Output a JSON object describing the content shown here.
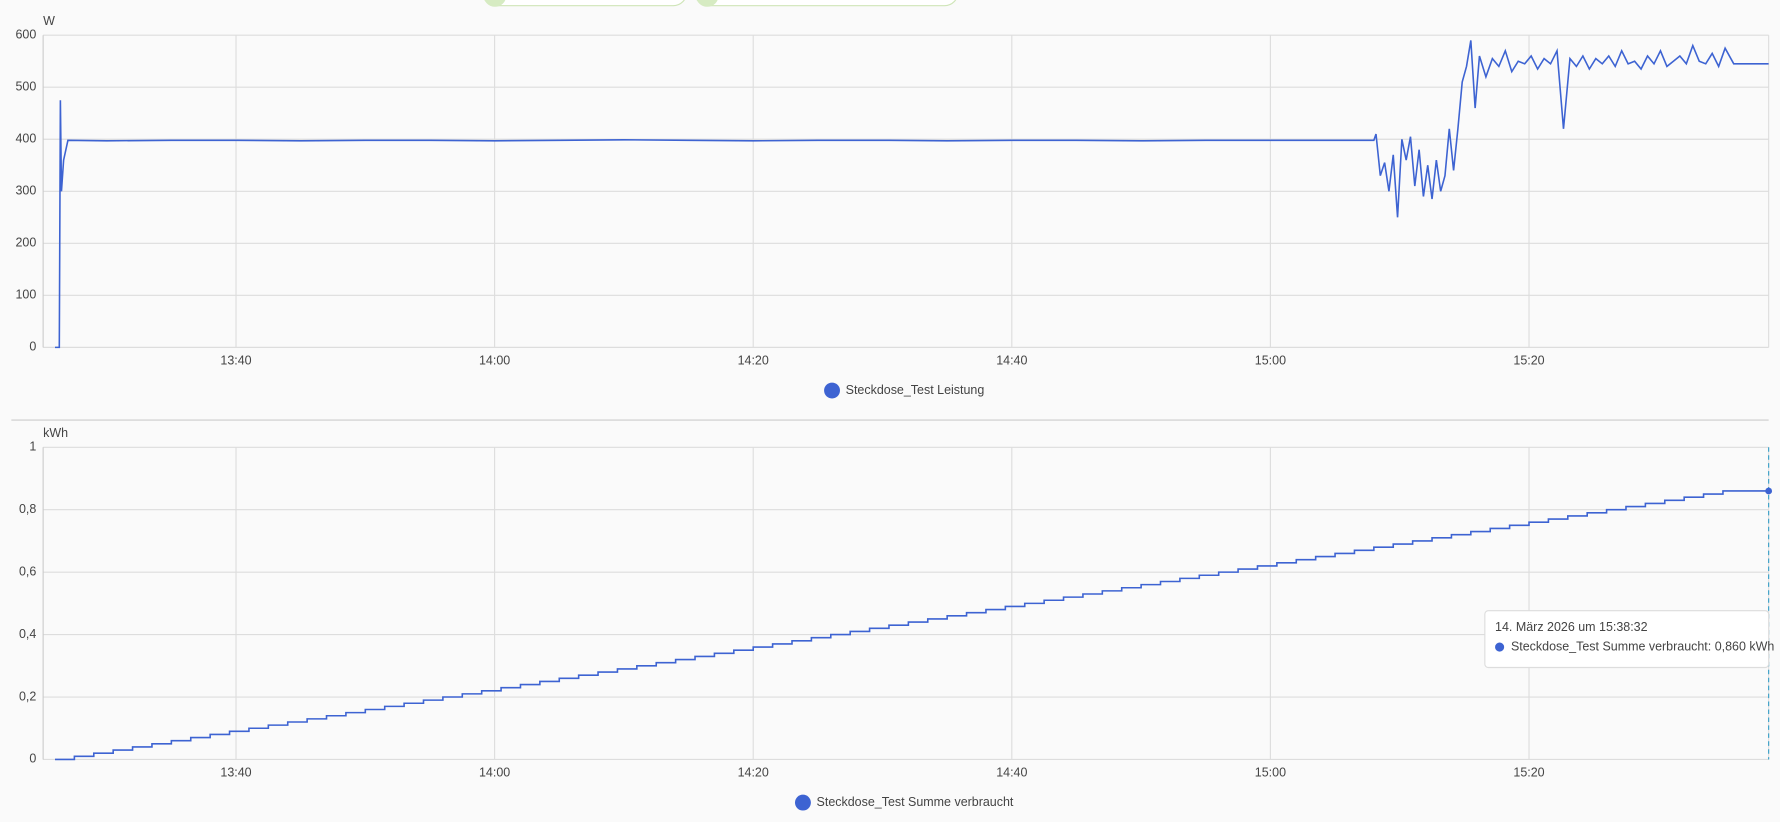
{
  "chart_data": [
    {
      "type": "line",
      "y_label": "W",
      "xlim": [
        "13:25:05",
        "15:38:32"
      ],
      "xticks": [
        "13:40",
        "14:00",
        "14:20",
        "14:40",
        "15:00",
        "15:20"
      ],
      "ylim": [
        0,
        600
      ],
      "yticks": [
        0,
        100,
        200,
        300,
        400,
        500,
        600
      ],
      "grid": true,
      "x": [
        "13:26:00",
        "13:26:20",
        "13:26:25",
        "13:26:30",
        "13:26:40",
        "13:27:00",
        "13:30:00",
        "13:35:00",
        "13:40:00",
        "13:45:00",
        "13:50:00",
        "13:55:00",
        "14:00:00",
        "14:05:00",
        "14:10:00",
        "14:15:00",
        "14:20:00",
        "14:25:00",
        "14:30:00",
        "14:35:00",
        "14:40:00",
        "14:45:00",
        "14:50:00",
        "14:55:00",
        "15:00:00",
        "15:05:00",
        "15:08:00",
        "15:08:10",
        "15:08:30",
        "15:08:50",
        "15:09:10",
        "15:09:30",
        "15:09:50",
        "15:10:10",
        "15:10:30",
        "15:10:50",
        "15:11:10",
        "15:11:30",
        "15:11:50",
        "15:12:10",
        "15:12:30",
        "15:12:50",
        "15:13:10",
        "15:13:30",
        "15:13:50",
        "15:14:10",
        "15:14:30",
        "15:14:50",
        "15:15:10",
        "15:15:30",
        "15:15:50",
        "15:16:10",
        "15:16:40",
        "15:17:10",
        "15:17:40",
        "15:18:10",
        "15:18:40",
        "15:19:10",
        "15:19:40",
        "15:20:10",
        "15:20:40",
        "15:21:10",
        "15:21:40",
        "15:22:10",
        "15:22:40",
        "15:23:10",
        "15:23:40",
        "15:24:10",
        "15:24:40",
        "15:25:10",
        "15:25:40",
        "15:26:10",
        "15:26:40",
        "15:27:10",
        "15:27:40",
        "15:28:10",
        "15:28:40",
        "15:29:10",
        "15:29:40",
        "15:30:10",
        "15:30:40",
        "15:31:10",
        "15:31:40",
        "15:32:10",
        "15:32:40",
        "15:33:10",
        "15:33:40",
        "15:34:10",
        "15:34:40",
        "15:35:10",
        "15:35:50",
        "15:38:32"
      ],
      "series": [
        {
          "name": "Steckdose_Test Leistung",
          "color": "#3d63d2",
          "values": [
            0,
            0,
            475,
            300,
            360,
            398,
            397,
            398,
            398,
            397,
            398,
            398,
            397,
            398,
            399,
            398,
            397,
            398,
            398,
            397,
            398,
            398,
            397,
            398,
            398,
            398,
            398,
            410,
            330,
            355,
            300,
            370,
            250,
            400,
            360,
            405,
            310,
            380,
            290,
            350,
            285,
            360,
            300,
            330,
            420,
            340,
            420,
            510,
            540,
            590,
            460,
            560,
            520,
            555,
            540,
            570,
            530,
            550,
            545,
            560,
            535,
            555,
            545,
            570,
            420,
            555,
            540,
            560,
            535,
            555,
            545,
            560,
            540,
            570,
            545,
            550,
            535,
            560,
            545,
            570,
            540,
            550,
            560,
            545,
            580,
            550,
            545,
            565,
            540,
            575,
            545,
            545
          ]
        }
      ]
    },
    {
      "type": "step",
      "y_label": "kWh",
      "xlim": [
        "13:25:05",
        "15:38:32"
      ],
      "xticks": [
        "13:40",
        "14:00",
        "14:20",
        "14:40",
        "15:00",
        "15:20"
      ],
      "ylim": [
        0,
        1
      ],
      "yticks": [
        0,
        {
          "value": 0.2,
          "label": "0,2"
        },
        {
          "value": 0.4,
          "label": "0,4"
        },
        {
          "value": 0.6,
          "label": "0,6"
        },
        {
          "value": 0.8,
          "label": "0,8"
        },
        1
      ],
      "grid": true,
      "x": [
        "13:26:00",
        "13:27:30",
        "13:29:00",
        "13:30:30",
        "13:32:00",
        "13:33:30",
        "13:35:00",
        "13:36:30",
        "13:38:00",
        "13:39:30",
        "13:41:00",
        "13:42:30",
        "13:44:00",
        "13:45:30",
        "13:47:00",
        "13:48:30",
        "13:50:00",
        "13:51:30",
        "13:53:00",
        "13:54:30",
        "13:56:00",
        "13:57:30",
        "13:59:00",
        "14:00:30",
        "14:02:00",
        "14:03:30",
        "14:05:00",
        "14:06:30",
        "14:08:00",
        "14:09:30",
        "14:11:00",
        "14:12:30",
        "14:14:00",
        "14:15:30",
        "14:17:00",
        "14:18:30",
        "14:20:00",
        "14:21:30",
        "14:23:00",
        "14:24:30",
        "14:26:00",
        "14:27:30",
        "14:29:00",
        "14:30:30",
        "14:32:00",
        "14:33:30",
        "14:35:00",
        "14:36:30",
        "14:38:00",
        "14:39:30",
        "14:41:00",
        "14:42:30",
        "14:44:00",
        "14:45:30",
        "14:47:00",
        "14:48:30",
        "14:50:00",
        "14:51:30",
        "14:53:00",
        "14:54:30",
        "14:56:00",
        "14:57:30",
        "14:59:00",
        "15:00:30",
        "15:02:00",
        "15:03:30",
        "15:05:00",
        "15:06:30",
        "15:08:00",
        "15:09:30",
        "15:11:00",
        "15:12:30",
        "15:14:00",
        "15:15:30",
        "15:17:00",
        "15:18:30",
        "15:20:00",
        "15:21:30",
        "15:23:00",
        "15:24:30",
        "15:26:00",
        "15:27:30",
        "15:29:00",
        "15:30:30",
        "15:32:00",
        "15:33:30",
        "15:35:00",
        "15:38:32"
      ],
      "series": [
        {
          "name": "Steckdose_Test Summe verbraucht",
          "color": "#3d63d2",
          "values": [
            0,
            0.01,
            0.02,
            0.03,
            0.04,
            0.05,
            0.06,
            0.07,
            0.08,
            0.09,
            0.1,
            0.11,
            0.12,
            0.13,
            0.14,
            0.15,
            0.16,
            0.17,
            0.18,
            0.19,
            0.2,
            0.21,
            0.22,
            0.23,
            0.24,
            0.25,
            0.26,
            0.27,
            0.28,
            0.29,
            0.3,
            0.31,
            0.32,
            0.33,
            0.34,
            0.35,
            0.36,
            0.37,
            0.38,
            0.39,
            0.4,
            0.41,
            0.42,
            0.43,
            0.44,
            0.45,
            0.46,
            0.47,
            0.48,
            0.49,
            0.5,
            0.51,
            0.52,
            0.53,
            0.54,
            0.55,
            0.56,
            0.57,
            0.58,
            0.59,
            0.6,
            0.61,
            0.62,
            0.63,
            0.64,
            0.65,
            0.66,
            0.67,
            0.68,
            0.69,
            0.7,
            0.71,
            0.72,
            0.73,
            0.74,
            0.75,
            0.76,
            0.77,
            0.78,
            0.79,
            0.8,
            0.81,
            0.82,
            0.83,
            0.84,
            0.85,
            0.86,
            0.86
          ]
        }
      ],
      "tooltip": {
        "title": "14. März 2026 um 15:38:32",
        "label": "Steckdose_Test Summe verbraucht: 0,860 kWh"
      }
    }
  ]
}
